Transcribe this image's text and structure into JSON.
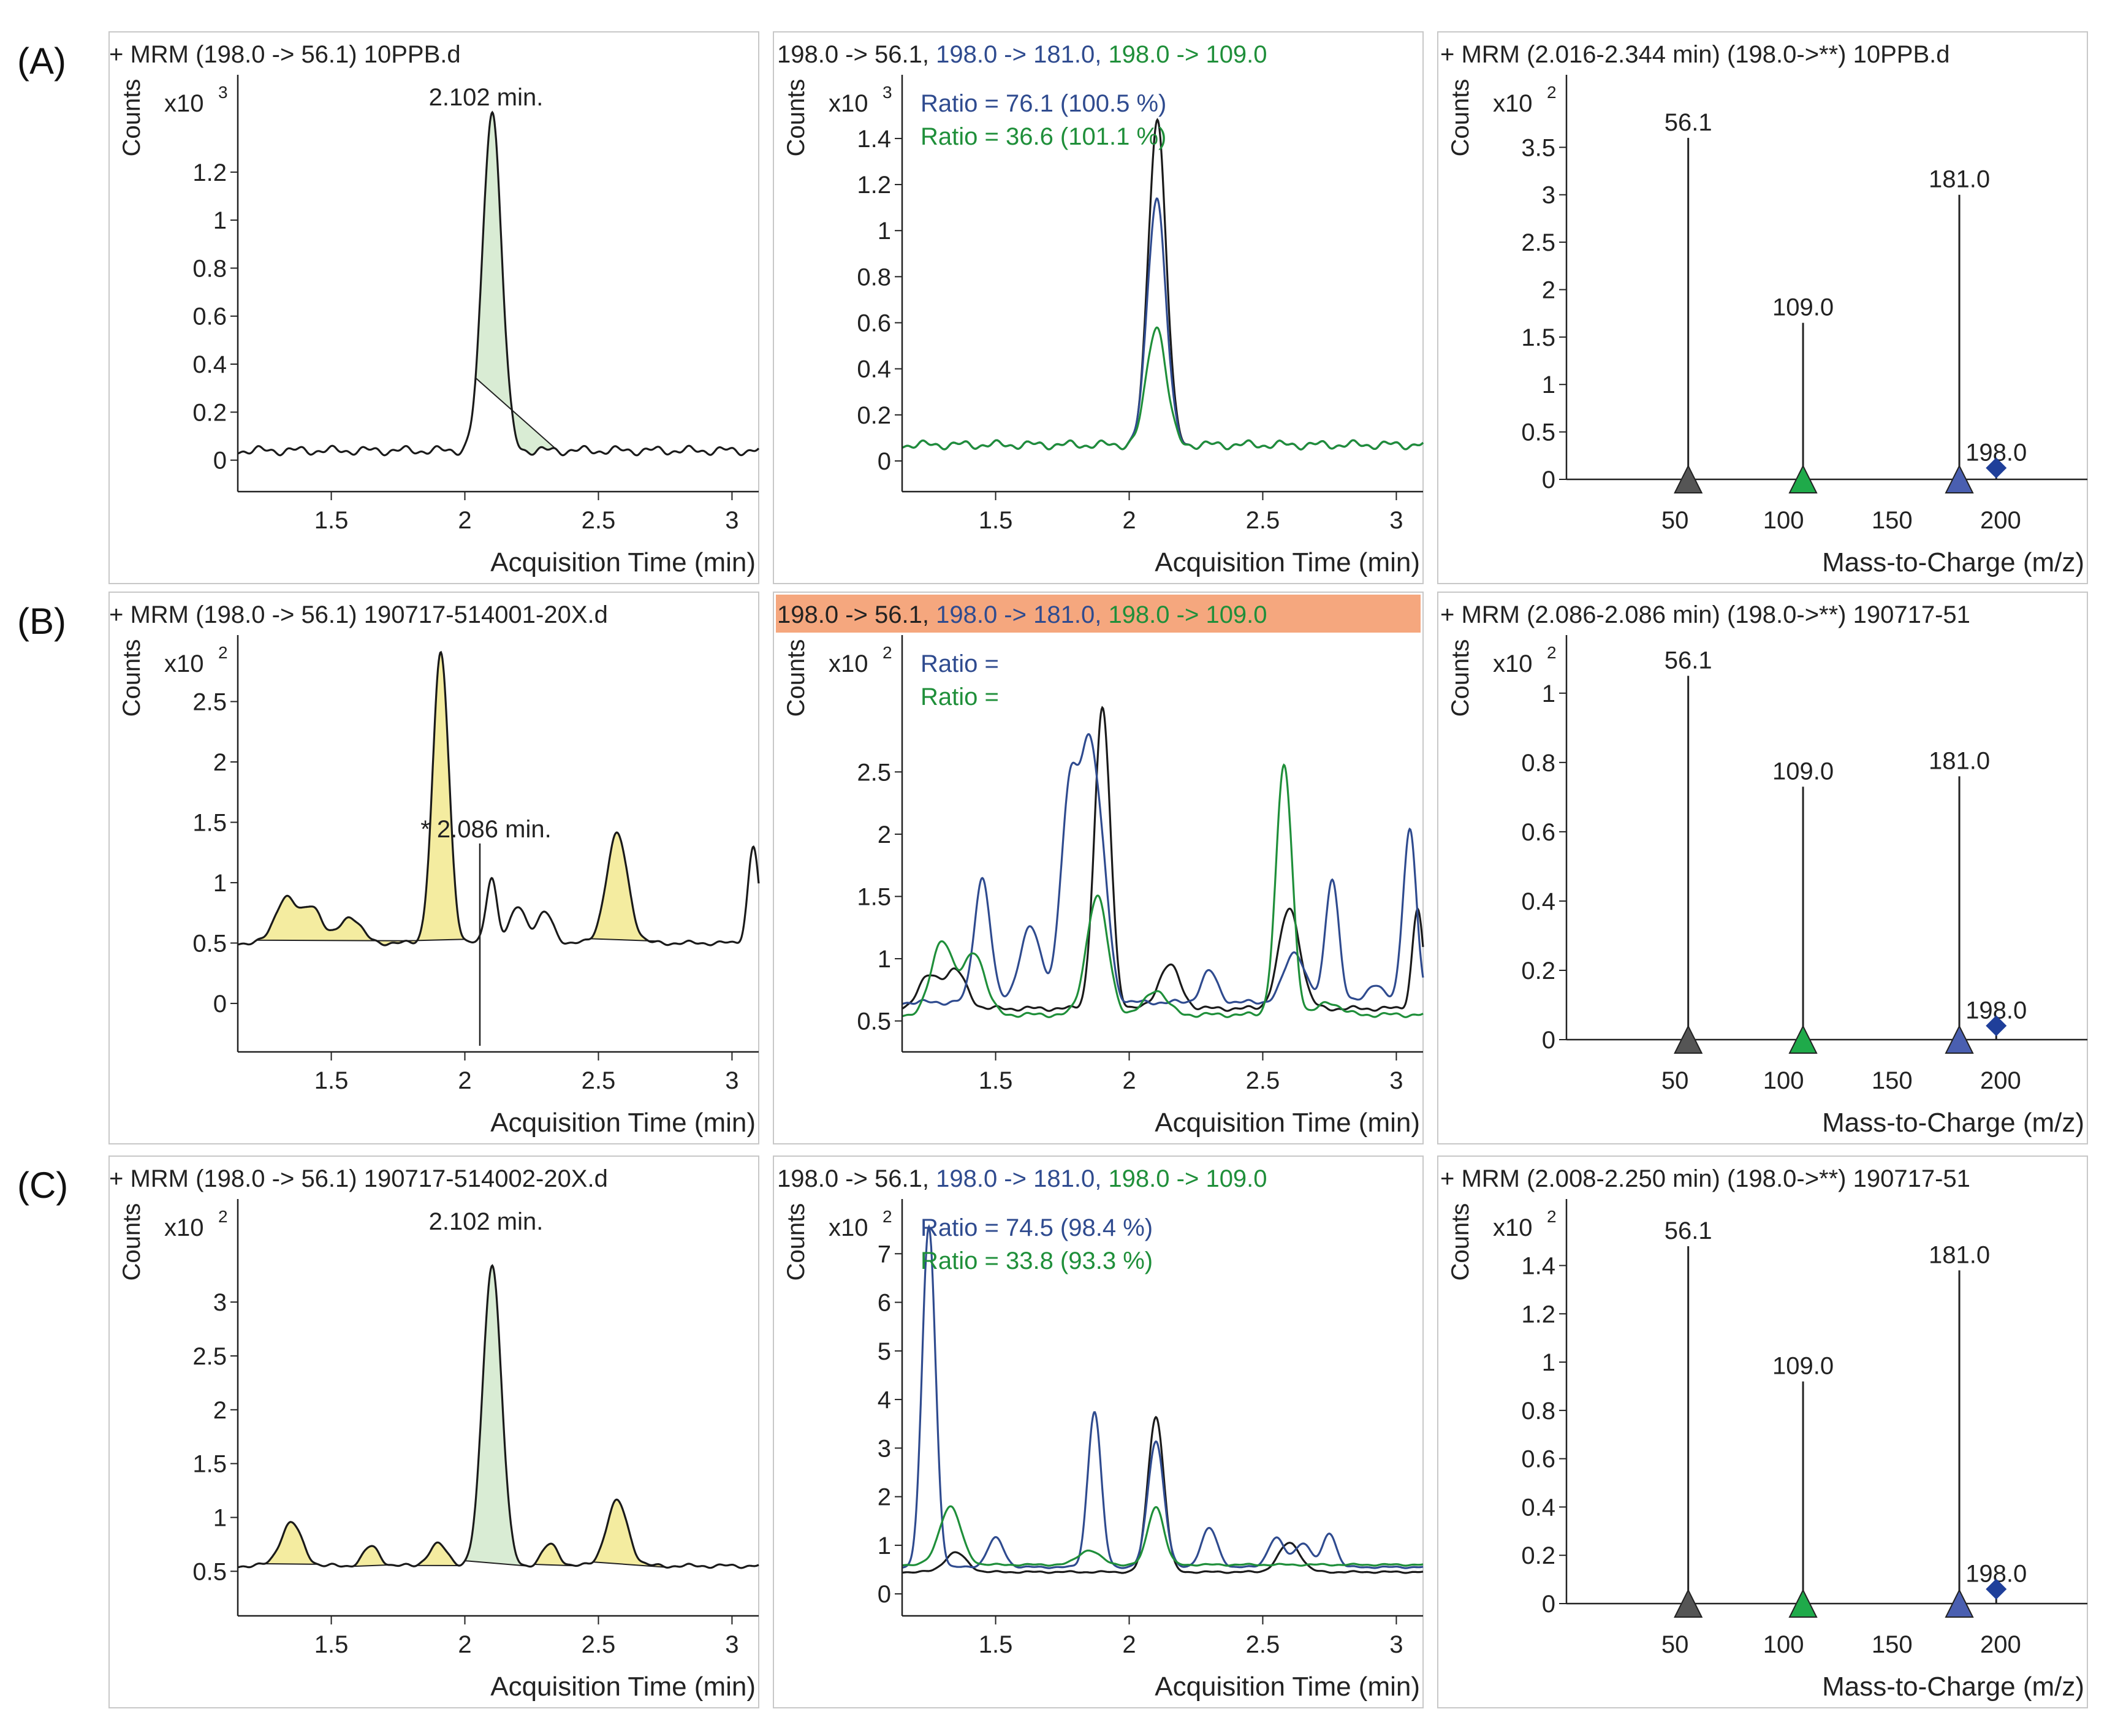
{
  "figure": {
    "rows": [
      {
        "label": "(A)",
        "chromatogram": {
          "title": "+ MRM (198.0 -> 56.1) 10PPB.d",
          "multiplier": "x10",
          "exponent": "3",
          "ylabel": "Counts",
          "xlabel": "Acquisition Time (min)",
          "annotation": "2.102 min."
        },
        "qualifier": {
          "transitions": [
            "198.0 -> 56.1",
            "198.0 -> 181.0",
            "198.0 -> 109.0"
          ],
          "highlighted": false,
          "multiplier": "x10",
          "exponent": "3",
          "ylabel": "Counts",
          "xlabel": "Acquisition Time (min)",
          "ratio_blue": "Ratio = 76.1 (100.5 %)",
          "ratio_green": "Ratio = 36.6 (101.1 %)"
        },
        "spectrum": {
          "title": "+ MRM (2.016-2.344 min) (198.0->**) 10PPB.d",
          "multiplier": "x10",
          "exponent": "2",
          "ylabel": "Counts",
          "xlabel": "Mass-to-Charge (m/z)"
        }
      },
      {
        "label": "(B)",
        "chromatogram": {
          "title": "+ MRM (198.0 -> 56.1) 190717-514001-20X.d",
          "multiplier": "x10",
          "exponent": "2",
          "ylabel": "Counts",
          "xlabel": "Acquisition Time (min)",
          "annotation": "* 2.086 min."
        },
        "qualifier": {
          "transitions": [
            "198.0 -> 56.1",
            "198.0 -> 181.0",
            "198.0 -> 109.0"
          ],
          "highlighted": true,
          "multiplier": "x10",
          "exponent": "2",
          "ylabel": "Counts",
          "xlabel": "Acquisition Time (min)",
          "ratio_blue": "Ratio =",
          "ratio_green": "Ratio ="
        },
        "spectrum": {
          "title": "+ MRM (2.086-2.086 min) (198.0->**) 190717-51",
          "multiplier": "x10",
          "exponent": "2",
          "ylabel": "Counts",
          "xlabel": "Mass-to-Charge (m/z)"
        }
      },
      {
        "label": "(C)",
        "chromatogram": {
          "title": "+ MRM (198.0 -> 56.1) 190717-514002-20X.d",
          "multiplier": "x10",
          "exponent": "2",
          "ylabel": "Counts",
          "xlabel": "Acquisition Time (min)",
          "annotation": "2.102 min."
        },
        "qualifier": {
          "transitions": [
            "198.0 -> 56.1",
            "198.0 -> 181.0",
            "198.0 -> 109.0"
          ],
          "highlighted": false,
          "multiplier": "x10",
          "exponent": "2",
          "ylabel": "Counts",
          "xlabel": "Acquisition Time (min)",
          "ratio_blue": "Ratio = 74.5 (98.4 %)",
          "ratio_green": "Ratio = 33.8 (93.3 %)"
        },
        "spectrum": {
          "title": "+ MRM (2.008-2.250 min) (198.0->**) 190717-51",
          "multiplier": "x10",
          "exponent": "2",
          "ylabel": "Counts",
          "xlabel": "Mass-to-Charge (m/z)"
        }
      }
    ]
  },
  "colors": {
    "black": "#1a1a1a",
    "blue": "#2f4b8f",
    "green": "#1f8f3a",
    "green_fill": "#d9ecd4",
    "yellow_fill": "#f4eca0",
    "highlight": "#f5a77e",
    "marker_black": "#555555",
    "marker_green": "#1faa4a",
    "marker_blue": "#4a5fb0",
    "marker_diamond": "#1f3f9a"
  },
  "chart_data": [
    {
      "panel": "A-chromatogram",
      "type": "line",
      "xlim": [
        1.15,
        3.1
      ],
      "ylim": [
        -0.08,
        1.58
      ],
      "xticks": [
        "1.5",
        "2",
        "2.5",
        "3"
      ],
      "yticks": [
        "0",
        "0.2",
        "0.4",
        "0.6",
        "0.8",
        "1",
        "1.2"
      ],
      "series": [
        {
          "name": "198.0 -> 56.1",
          "color": "black",
          "baseline": 0.04,
          "peaks": [
            {
              "x": 2.102,
              "h": 1.42,
              "w": 0.035
            }
          ],
          "fill_peaks": [
            {
              "x0": 2.04,
              "x1": 2.34,
              "fill": "green_fill"
            }
          ]
        }
      ]
    },
    {
      "panel": "A-qualifier",
      "type": "line",
      "xlim": [
        1.15,
        3.1
      ],
      "ylim": [
        -0.08,
        1.65
      ],
      "xticks": [
        "1.5",
        "2",
        "2.5",
        "3"
      ],
      "yticks": [
        "0",
        "0.2",
        "0.4",
        "0.6",
        "0.8",
        "1",
        "1.2",
        "1.4"
      ],
      "series": [
        {
          "name": "198.0 -> 56.1",
          "color": "black",
          "baseline": 0.07,
          "peaks": [
            {
              "x": 2.105,
              "h": 1.42,
              "w": 0.033
            }
          ]
        },
        {
          "name": "198.0 -> 181.0",
          "color": "blue",
          "baseline": 0.07,
          "peaks": [
            {
              "x": 2.103,
              "h": 1.08,
              "w": 0.034
            }
          ]
        },
        {
          "name": "198.0 -> 109.0",
          "color": "green",
          "baseline": 0.07,
          "peaks": [
            {
              "x": 2.102,
              "h": 0.52,
              "w": 0.036
            }
          ]
        }
      ]
    },
    {
      "panel": "A-spectrum",
      "type": "bar",
      "xlim": [
        0,
        240
      ],
      "ylim": [
        0,
        4.2
      ],
      "xticks": [
        "50",
        "100",
        "150",
        "200"
      ],
      "yticks": [
        "0",
        "0.5",
        "1",
        "1.5",
        "2",
        "2.5",
        "3",
        "3.5"
      ],
      "x": [
        56.1,
        109.0,
        181.0,
        198.0
      ],
      "values": [
        3.6,
        1.65,
        3.0,
        0.12
      ],
      "labels": [
        "56.1",
        "109.0",
        "181.0",
        "198.0"
      ]
    },
    {
      "panel": "B-chromatogram",
      "type": "line",
      "xlim": [
        1.15,
        3.1
      ],
      "ylim": [
        -0.3,
        3.0
      ],
      "xticks": [
        "1.5",
        "2",
        "2.5",
        "3"
      ],
      "yticks": [
        "0",
        "0.5",
        "1",
        "1.5",
        "2",
        "2.5"
      ],
      "series": [
        {
          "name": "198.0 -> 56.1",
          "color": "black",
          "baseline": 0.5,
          "peaks": [
            {
              "x": 1.33,
              "h": 0.38,
              "w": 0.04
            },
            {
              "x": 1.43,
              "h": 0.3,
              "w": 0.035
            },
            {
              "x": 1.57,
              "h": 0.22,
              "w": 0.04
            },
            {
              "x": 1.91,
              "h": 2.4,
              "w": 0.03
            },
            {
              "x": 2.1,
              "h": 0.55,
              "w": 0.02
            },
            {
              "x": 2.2,
              "h": 0.3,
              "w": 0.03
            },
            {
              "x": 2.3,
              "h": 0.25,
              "w": 0.03
            },
            {
              "x": 2.57,
              "h": 0.9,
              "w": 0.04
            },
            {
              "x": 3.08,
              "h": 0.8,
              "w": 0.02
            }
          ],
          "fill_peaks": [
            {
              "x0": 1.22,
              "x1": 1.78,
              "fill": "yellow_fill"
            },
            {
              "x0": 1.78,
              "x1": 2.0,
              "fill": "yellow_fill"
            },
            {
              "x0": 2.47,
              "x1": 2.72,
              "fill": "yellow_fill"
            }
          ]
        }
      ]
    },
    {
      "panel": "B-qualifier",
      "type": "line",
      "xlim": [
        1.15,
        3.1
      ],
      "ylim": [
        0.35,
        3.55
      ],
      "xticks": [
        "1.5",
        "2",
        "2.5",
        "3"
      ],
      "yticks": [
        "0.5",
        "1",
        "1.5",
        "2",
        "2.5"
      ],
      "series": [
        {
          "name": "198.0 -> 56.1",
          "color": "black",
          "baseline": 0.6,
          "peaks": [
            {
              "x": 1.25,
              "h": 0.25,
              "w": 0.04
            },
            {
              "x": 1.35,
              "h": 0.3,
              "w": 0.04
            },
            {
              "x": 1.9,
              "h": 2.4,
              "w": 0.03
            },
            {
              "x": 2.15,
              "h": 0.35,
              "w": 0.04
            },
            {
              "x": 2.6,
              "h": 0.8,
              "w": 0.04
            },
            {
              "x": 3.08,
              "h": 0.8,
              "w": 0.02
            }
          ]
        },
        {
          "name": "198.0 -> 181.0",
          "color": "blue",
          "baseline": 0.65,
          "peaks": [
            {
              "x": 1.45,
              "h": 1.0,
              "w": 0.03
            },
            {
              "x": 1.63,
              "h": 0.6,
              "w": 0.04
            },
            {
              "x": 1.78,
              "h": 1.75,
              "w": 0.035
            },
            {
              "x": 1.85,
              "h": 1.7,
              "w": 0.03
            },
            {
              "x": 1.9,
              "h": 0.9,
              "w": 0.03
            },
            {
              "x": 2.3,
              "h": 0.25,
              "w": 0.03
            },
            {
              "x": 2.62,
              "h": 0.4,
              "w": 0.04
            },
            {
              "x": 2.76,
              "h": 1.0,
              "w": 0.025
            },
            {
              "x": 2.92,
              "h": 0.15,
              "w": 0.03
            },
            {
              "x": 3.05,
              "h": 1.4,
              "w": 0.025
            }
          ]
        },
        {
          "name": "198.0 -> 109.0",
          "color": "green",
          "baseline": 0.55,
          "peaks": [
            {
              "x": 1.3,
              "h": 0.6,
              "w": 0.04
            },
            {
              "x": 1.42,
              "h": 0.5,
              "w": 0.04
            },
            {
              "x": 1.88,
              "h": 0.95,
              "w": 0.04
            },
            {
              "x": 2.1,
              "h": 0.2,
              "w": 0.04
            },
            {
              "x": 2.58,
              "h": 2.0,
              "w": 0.03
            },
            {
              "x": 2.75,
              "h": 0.1,
              "w": 0.04
            }
          ]
        }
      ]
    },
    {
      "panel": "B-spectrum",
      "type": "bar",
      "xlim": [
        0,
        240
      ],
      "ylim": [
        0,
        1.15
      ],
      "xticks": [
        "50",
        "100",
        "150",
        "200"
      ],
      "yticks": [
        "0",
        "0.2",
        "0.4",
        "0.6",
        "0.8",
        "1"
      ],
      "x": [
        56.1,
        109.0,
        181.0,
        198.0
      ],
      "values": [
        1.05,
        0.73,
        0.76,
        0.04
      ],
      "labels": [
        "56.1",
        "109.0",
        "181.0",
        "198.0"
      ]
    },
    {
      "panel": "C-chromatogram",
      "type": "line",
      "xlim": [
        1.15,
        3.1
      ],
      "ylim": [
        0.2,
        3.9
      ],
      "xticks": [
        "1.5",
        "2",
        "2.5",
        "3"
      ],
      "yticks": [
        "0.5",
        "1",
        "1.5",
        "2",
        "2.5",
        "3"
      ],
      "series": [
        {
          "name": "198.0 -> 56.1",
          "color": "black",
          "baseline": 0.55,
          "peaks": [
            {
              "x": 1.35,
              "h": 0.4,
              "w": 0.04
            },
            {
              "x": 1.65,
              "h": 0.18,
              "w": 0.03
            },
            {
              "x": 1.9,
              "h": 0.2,
              "w": 0.035
            },
            {
              "x": 2.102,
              "h": 2.8,
              "w": 0.035
            },
            {
              "x": 2.32,
              "h": 0.2,
              "w": 0.03
            },
            {
              "x": 2.57,
              "h": 0.6,
              "w": 0.04
            }
          ],
          "fill_peaks": [
            {
              "x0": 1.25,
              "x1": 1.45,
              "fill": "yellow_fill"
            },
            {
              "x0": 1.58,
              "x1": 1.72,
              "fill": "yellow_fill"
            },
            {
              "x0": 1.82,
              "x1": 1.98,
              "fill": "yellow_fill"
            },
            {
              "x0": 2.0,
              "x1": 2.25,
              "fill": "green_fill"
            },
            {
              "x0": 2.26,
              "x1": 2.42,
              "fill": "yellow_fill"
            },
            {
              "x0": 2.48,
              "x1": 2.75,
              "fill": "yellow_fill"
            }
          ]
        }
      ]
    },
    {
      "panel": "C-qualifier",
      "type": "line",
      "xlim": [
        1.15,
        3.1
      ],
      "ylim": [
        -0.2,
        8.0
      ],
      "xticks": [
        "1.5",
        "2",
        "2.5",
        "3"
      ],
      "yticks": [
        "0",
        "1",
        "2",
        "3",
        "4",
        "5",
        "6",
        "7"
      ],
      "series": [
        {
          "name": "198.0 -> 56.1",
          "color": "black",
          "baseline": 0.45,
          "peaks": [
            {
              "x": 1.35,
              "h": 0.4,
              "w": 0.04
            },
            {
              "x": 2.1,
              "h": 3.2,
              "w": 0.03
            },
            {
              "x": 2.6,
              "h": 0.6,
              "w": 0.04
            }
          ]
        },
        {
          "name": "198.0 -> 181.0",
          "color": "blue",
          "baseline": 0.55,
          "peaks": [
            {
              "x": 1.25,
              "h": 7.0,
              "w": 0.025
            },
            {
              "x": 1.5,
              "h": 0.6,
              "w": 0.03
            },
            {
              "x": 1.87,
              "h": 3.2,
              "w": 0.025
            },
            {
              "x": 2.1,
              "h": 2.6,
              "w": 0.03
            },
            {
              "x": 2.3,
              "h": 0.8,
              "w": 0.03
            },
            {
              "x": 2.55,
              "h": 0.6,
              "w": 0.03
            },
            {
              "x": 2.65,
              "h": 0.5,
              "w": 0.03
            },
            {
              "x": 2.75,
              "h": 0.7,
              "w": 0.025
            }
          ]
        },
        {
          "name": "198.0 -> 109.0",
          "color": "green",
          "baseline": 0.6,
          "peaks": [
            {
              "x": 1.33,
              "h": 1.2,
              "w": 0.04
            },
            {
              "x": 1.85,
              "h": 0.3,
              "w": 0.04
            },
            {
              "x": 2.1,
              "h": 1.2,
              "w": 0.03
            }
          ]
        }
      ]
    },
    {
      "panel": "C-spectrum",
      "type": "bar",
      "xlim": [
        0,
        240
      ],
      "ylim": [
        0,
        1.65
      ],
      "xticks": [
        "50",
        "100",
        "150",
        "200"
      ],
      "yticks": [
        "0",
        "0.2",
        "0.4",
        "0.6",
        "0.8",
        "1",
        "1.2",
        "1.4"
      ],
      "x": [
        56.1,
        109.0,
        181.0,
        198.0
      ],
      "values": [
        1.48,
        0.92,
        1.38,
        0.06
      ],
      "labels": [
        "56.1",
        "109.0",
        "181.0",
        "198.0"
      ]
    }
  ]
}
